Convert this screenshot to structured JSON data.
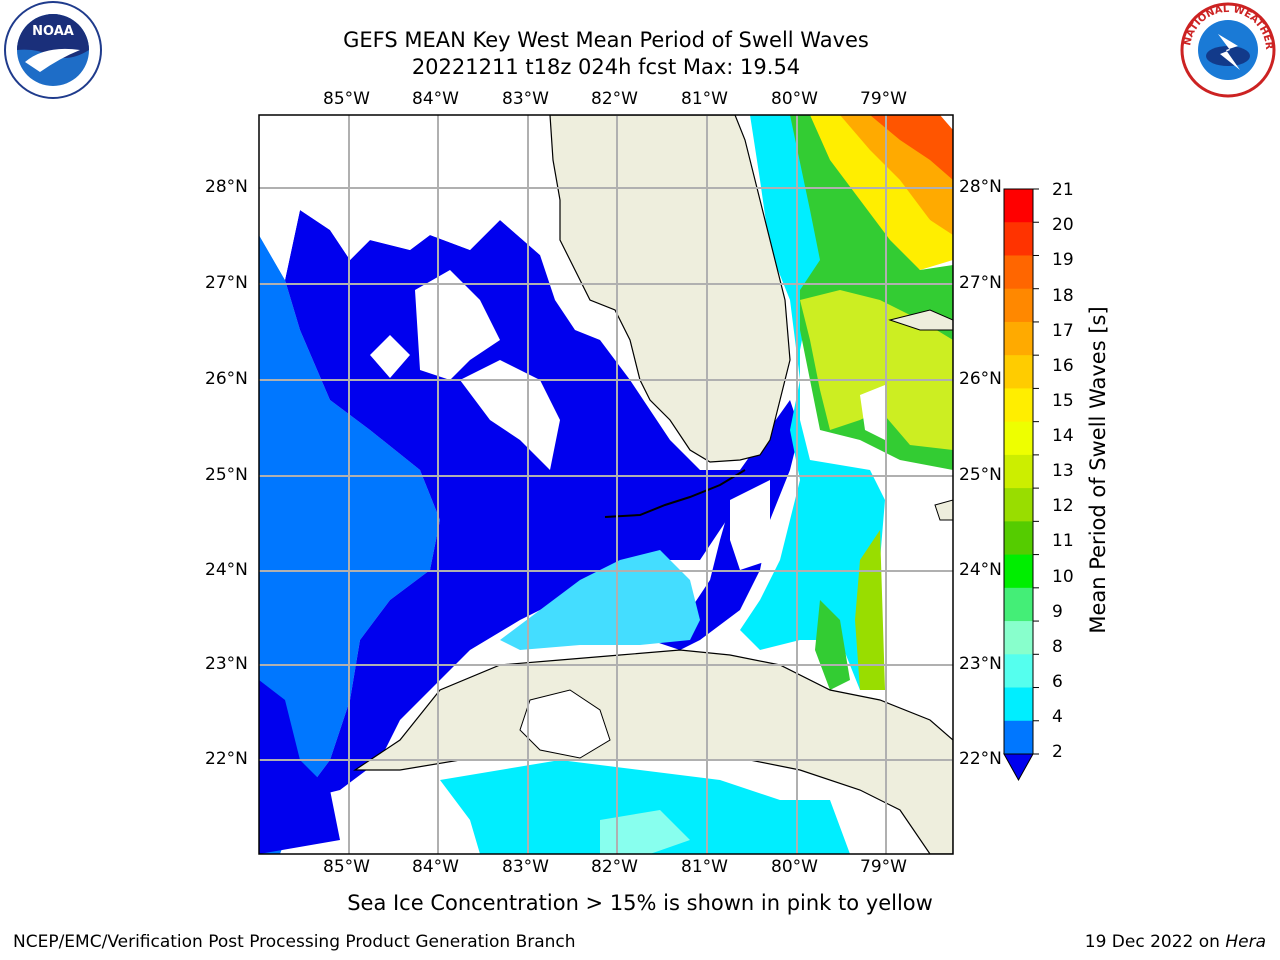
{
  "header": {
    "title_line1": "GEFS MEAN Key West Mean Period of Swell Waves",
    "title_line2": "20221211 t18z 024h fcst   Max: 19.54"
  },
  "logos": {
    "left": "noaa-logo",
    "right": "nws-logo",
    "left_text": "NOAA",
    "right_ring_text": "NATIONAL WEATHER SERVICE"
  },
  "map": {
    "lon_labels": [
      "85°W",
      "84°W",
      "83°W",
      "82°W",
      "81°W",
      "80°W",
      "79°W"
    ],
    "lat_labels": [
      "28°N",
      "27°N",
      "26°N",
      "25°N",
      "24°N",
      "23°N",
      "22°N"
    ],
    "land_color": "#eeeedd",
    "grid_color": "#b0b0b0"
  },
  "colorbar": {
    "label": "Mean Period of Swell Waves [s]",
    "ticks": [
      "21",
      "20",
      "19",
      "18",
      "17",
      "16",
      "15",
      "14",
      "13",
      "12",
      "11",
      "10",
      "9",
      "8",
      "6",
      "4",
      "2"
    ],
    "colors": [
      "#ff0000",
      "#ff3300",
      "#ff6600",
      "#ff8800",
      "#ffaa00",
      "#ffcc00",
      "#ffee00",
      "#eeff00",
      "#ccee00",
      "#99dd00",
      "#55cc00",
      "#00ee00",
      "#44ee77",
      "#88ffcc",
      "#55ffee",
      "#00eeff",
      "#0077ff",
      "#0000ee"
    ]
  },
  "footer": {
    "note": "Sea Ice Concentration > 15% is shown in pink to yellow",
    "credit": "NCEP/EMC/Verification Post Processing Product Generation Branch",
    "date_prefix": "19 Dec 2022 on ",
    "machine": "Hera"
  }
}
